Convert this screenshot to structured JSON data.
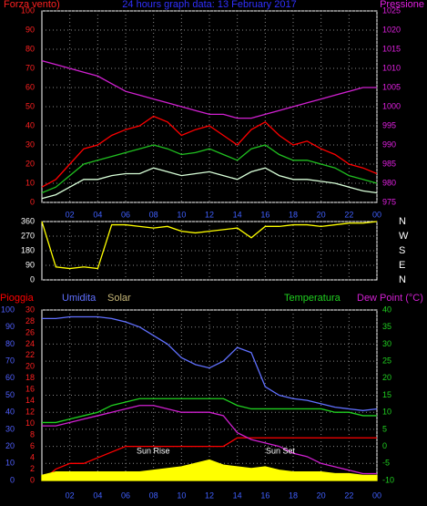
{
  "chart_data": [
    {
      "type": "line",
      "title": "24 hours graph data: 13 February 2017",
      "ylabel": "Forza vento)",
      "y2label": "Pressione",
      "title_color": "#3030ff",
      "ytick_color": "#ff2020",
      "y2tick_color": "#e020e0",
      "xtick_color": "#4060ff",
      "grid": true,
      "x": [
        0,
        1,
        2,
        3,
        4,
        5,
        6,
        7,
        8,
        9,
        10,
        11,
        12,
        13,
        14,
        15,
        16,
        17,
        18,
        19,
        20,
        21,
        22,
        23,
        24
      ],
      "xlim": [
        0,
        24
      ],
      "xticks": [
        {
          "value": 2,
          "label": "02"
        },
        {
          "value": 4,
          "label": "04"
        },
        {
          "value": 6,
          "label": "06"
        },
        {
          "value": 8,
          "label": "08"
        },
        10,
        12,
        14,
        16,
        18,
        20,
        22,
        {
          "value": 24,
          "label": "00"
        }
      ],
      "ylim": [
        0,
        100
      ],
      "yticks": [
        0,
        10,
        20,
        30,
        40,
        50,
        60,
        70,
        80,
        90,
        100
      ],
      "y2lim": [
        975,
        1025
      ],
      "y2ticks": [
        975,
        980,
        985,
        990,
        995,
        1000,
        1005,
        1010,
        1015,
        1020,
        1025
      ],
      "series": [
        {
          "color": "#ff0000",
          "values": [
            8,
            12,
            20,
            28,
            30,
            35,
            38,
            40,
            45,
            42,
            35,
            38,
            40,
            35,
            30,
            38,
            42,
            35,
            30,
            32,
            28,
            25,
            20,
            18,
            15
          ]
        },
        {
          "color": "#20c020",
          "values": [
            5,
            8,
            14,
            20,
            22,
            24,
            26,
            28,
            30,
            28,
            25,
            26,
            28,
            25,
            22,
            28,
            30,
            25,
            22,
            22,
            20,
            18,
            14,
            12,
            10
          ]
        },
        {
          "color": "#d8ffd8",
          "values": [
            2,
            4,
            8,
            12,
            12,
            14,
            15,
            15,
            18,
            16,
            14,
            15,
            16,
            14,
            12,
            16,
            18,
            14,
            12,
            12,
            11,
            10,
            8,
            6,
            5
          ]
        },
        {
          "color": "#d020d0",
          "axis": "y2",
          "values": [
            1012,
            1011,
            1010,
            1009,
            1008,
            1006,
            1004,
            1003,
            1002,
            1001,
            1000,
            999,
            998,
            998,
            997,
            997,
            998,
            999,
            1000,
            1001,
            1002,
            1003,
            1004,
            1005,
            1005
          ]
        }
      ]
    },
    {
      "type": "line",
      "ytick_color": "#ffffff",
      "y2tick_color": "#ffffff",
      "grid": true,
      "x": [
        0,
        1,
        2,
        3,
        4,
        5,
        6,
        7,
        8,
        9,
        10,
        11,
        12,
        13,
        14,
        15,
        16,
        17,
        18,
        19,
        20,
        21,
        22,
        23,
        24
      ],
      "xlim": [
        0,
        24
      ],
      "xticks": [
        2,
        4,
        6,
        8,
        10,
        12,
        14,
        16,
        18,
        20,
        22,
        24
      ],
      "ylim": [
        0,
        360
      ],
      "yticks": [
        0,
        90,
        180,
        270,
        360
      ],
      "y2lim": [
        0,
        360
      ],
      "y2ticks": [
        {
          "value": 0,
          "label": "N"
        },
        {
          "value": 90,
          "label": "E"
        },
        {
          "value": 180,
          "label": "S"
        },
        {
          "value": 270,
          "label": "W"
        },
        {
          "value": 360,
          "label": "N"
        }
      ],
      "series": [
        {
          "color": "#ffff00",
          "values": [
            360,
            80,
            70,
            80,
            70,
            340,
            340,
            330,
            320,
            330,
            300,
            290,
            300,
            310,
            320,
            260,
            330,
            330,
            340,
            340,
            330,
            340,
            350,
            350,
            360
          ]
        }
      ]
    },
    {
      "type": "line",
      "annotations": [
        "Sun Rise",
        "Sun Set"
      ],
      "ytick_color": "#5060ff",
      "y2tick_color": "#20d020",
      "y3tick_color": "#ff2020",
      "xtick_color": "#4060ff",
      "grid": true,
      "x": [
        0,
        1,
        2,
        3,
        4,
        5,
        6,
        7,
        8,
        9,
        10,
        11,
        12,
        13,
        14,
        15,
        16,
        17,
        18,
        19,
        20,
        21,
        22,
        23,
        24
      ],
      "xlim": [
        0,
        24
      ],
      "xticks": [
        {
          "value": 2,
          "label": "02"
        },
        {
          "value": 4,
          "label": "04"
        },
        {
          "value": 6,
          "label": "06"
        },
        {
          "value": 8,
          "label": "08"
        },
        10,
        12,
        14,
        16,
        18,
        20,
        22,
        {
          "value": 24,
          "label": "00"
        }
      ],
      "ylim": [
        0,
        100
      ],
      "yticks": [
        0,
        10,
        20,
        30,
        40,
        50,
        60,
        70,
        80,
        90,
        100
      ],
      "y2lim": [
        -10,
        40
      ],
      "y2ticks": [
        -10,
        -5,
        0,
        5,
        10,
        15,
        20,
        25,
        30,
        35,
        40
      ],
      "y3lim": [
        0,
        30
      ],
      "y3ticks": [
        0,
        2,
        4,
        6,
        8,
        10,
        12,
        14,
        16,
        18,
        20,
        22,
        24,
        26,
        28,
        30
      ],
      "series": [
        {
          "name": "Pioggia",
          "color": "#ff0000",
          "axis": "y3",
          "values": [
            0,
            2,
            3,
            3,
            4,
            5,
            6,
            6,
            6,
            6,
            6,
            6,
            6,
            6,
            7.5,
            7.5,
            7.5,
            7.5,
            7.5,
            7.5,
            7.5,
            7.5,
            7.5,
            7.5,
            7.5
          ]
        },
        {
          "name": "Umidita",
          "color": "#6070ff",
          "values": [
            95,
            95,
            96,
            96,
            96,
            95,
            93,
            90,
            85,
            80,
            72,
            68,
            66,
            70,
            78,
            75,
            55,
            50,
            48,
            47,
            45,
            43,
            42,
            41,
            42
          ]
        },
        {
          "name": "Solar",
          "color": "#ffff00",
          "area": true,
          "label_color": "#c8b878",
          "values": [
            3,
            5,
            5,
            5,
            5,
            5,
            5,
            5,
            6,
            7,
            8,
            10,
            12,
            9,
            8,
            7,
            8,
            6,
            5,
            5,
            5,
            4,
            4,
            3,
            3
          ]
        },
        {
          "name": "Temperatura",
          "color": "#20d020",
          "axis": "y2",
          "values": [
            7,
            7,
            8,
            9,
            10,
            12,
            13,
            14,
            14,
            14,
            14,
            14,
            14,
            14,
            12,
            11,
            11,
            11,
            11,
            11,
            11,
            10,
            10,
            9,
            9
          ]
        },
        {
          "name": "Dew Point (°C)",
          "color": "#d020d0",
          "axis": "y2",
          "values": [
            6,
            6,
            7,
            8,
            9,
            10,
            11,
            12,
            12,
            11,
            10,
            10,
            10,
            9,
            4,
            2,
            1,
            0,
            -2,
            -3,
            -5,
            -6,
            -7,
            -8,
            -8
          ]
        }
      ]
    }
  ]
}
